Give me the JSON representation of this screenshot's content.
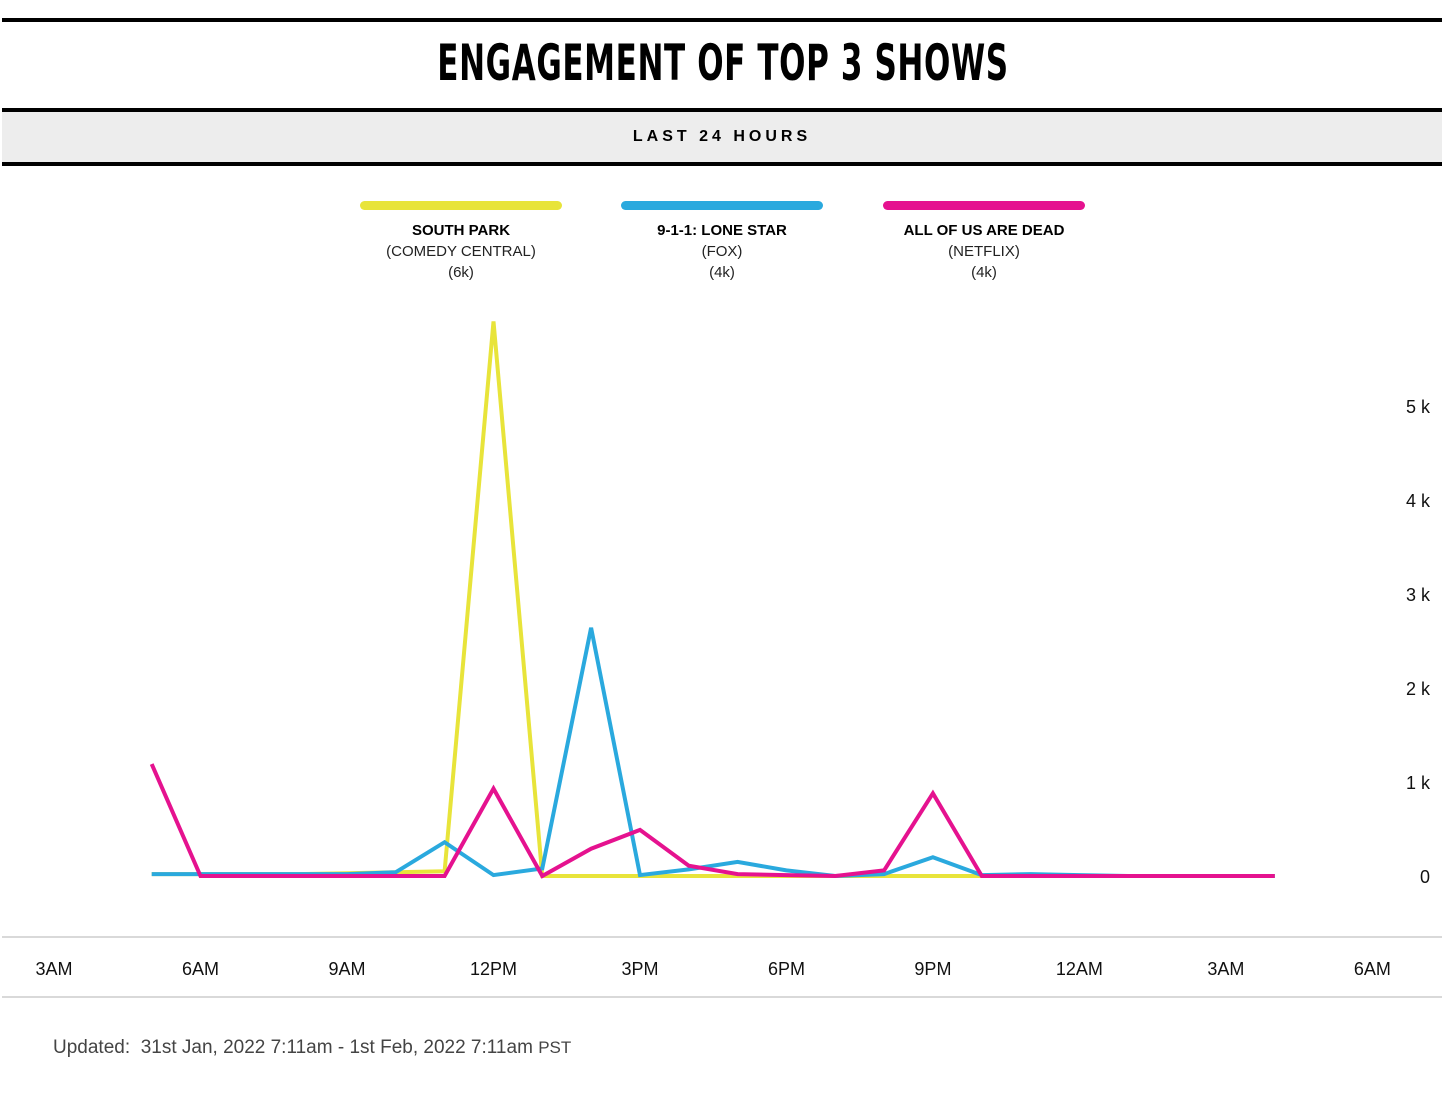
{
  "header": {
    "title": "ENGAGEMENT OF TOP 3 SHOWS",
    "subtitle": "LAST 24 HOURS"
  },
  "legend": [
    {
      "name": "SOUTH PARK",
      "network": "(COMEDY CENTRAL)",
      "total": "(6k)",
      "color": "#e8e43a"
    },
    {
      "name": "9-1-1: LONE STAR",
      "network": "(FOX)",
      "total": "(4k)",
      "color": "#2aa9de"
    },
    {
      "name": "ALL OF US ARE DEAD",
      "network": "(NETFLIX)",
      "total": "(4k)",
      "color": "#e5128f"
    }
  ],
  "chart_data": {
    "type": "line",
    "x_ticks": [
      "3AM",
      "6AM",
      "9AM",
      "12PM",
      "3PM",
      "6PM",
      "9PM",
      "12AM",
      "3AM",
      "6AM"
    ],
    "y_ticks": [
      "0",
      "1 k",
      "2 k",
      "3 k",
      "4 k",
      "5 k"
    ],
    "ylim": [
      0,
      6000
    ],
    "x_start_hour": 3,
    "x": [
      5,
      6,
      7,
      8,
      9,
      10,
      11,
      12,
      13,
      14,
      15,
      16,
      17,
      18,
      19,
      20,
      21,
      22,
      23,
      24,
      25,
      26,
      27,
      28
    ],
    "grid": false,
    "legend_position": "top",
    "series": [
      {
        "name": "SOUTH PARK",
        "color": "#e8e43a",
        "values": [
          20,
          20,
          20,
          20,
          30,
          40,
          50,
          5900,
          0,
          0,
          0,
          0,
          0,
          0,
          0,
          0,
          0,
          0,
          0,
          0,
          0,
          0,
          0,
          0
        ]
      },
      {
        "name": "9-1-1: LONE STAR",
        "color": "#2aa9de",
        "values": [
          20,
          20,
          20,
          20,
          20,
          40,
          360,
          10,
          80,
          2640,
          10,
          70,
          150,
          60,
          0,
          20,
          200,
          10,
          20,
          10,
          0,
          0,
          0,
          0
        ]
      },
      {
        "name": "ALL OF US ARE DEAD",
        "color": "#e5128f",
        "values": [
          1190,
          0,
          0,
          0,
          0,
          0,
          0,
          930,
          0,
          290,
          490,
          110,
          20,
          10,
          0,
          60,
          880,
          0,
          0,
          0,
          0,
          0,
          0,
          0
        ]
      }
    ]
  },
  "footer": {
    "label": "Updated:",
    "range": "31st Jan, 2022 7:11am - 1st Feb, 2022 7:11am",
    "tz": "PST"
  }
}
